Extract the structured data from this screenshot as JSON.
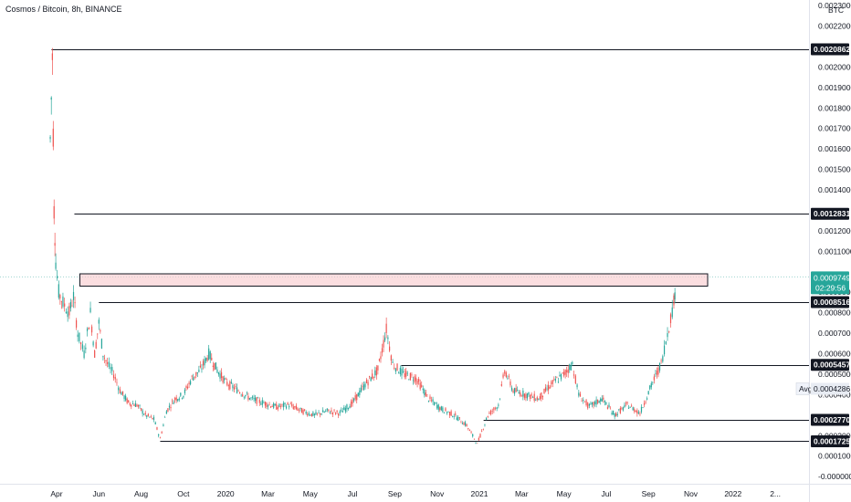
{
  "title": "Cosmos / Bitcoin, 8h, BINANCE",
  "currency": "BTC",
  "colors": {
    "up": "#26a69a",
    "down": "#ef5350",
    "line": "#131722",
    "current": "#26a69a",
    "zone_fill": "#f8c8cc",
    "grid_current": "#9fd4cf"
  },
  "chart_data": {
    "type": "candlestick",
    "title": "Cosmos / Bitcoin, 8h, BINANCE",
    "x_labels": [
      "Apr",
      "Jun",
      "Aug",
      "Oct",
      "2020",
      "Mar",
      "May",
      "Jul",
      "Sep",
      "Nov",
      "2021",
      "Mar",
      "May",
      "Jul",
      "Sep",
      "Nov",
      "2022",
      "2..."
    ],
    "x_range": [
      0,
      18.05
    ],
    "x_ticks_pos": [
      0,
      1,
      2,
      3,
      4,
      5,
      6,
      7,
      8,
      9,
      10,
      11,
      12,
      13,
      14,
      15,
      16,
      17
    ],
    "y_ticks": [
      "0.0022000",
      "0.0020000",
      "0.0019000",
      "0.0018000",
      "0.0017000",
      "0.0016000",
      "0.0015000",
      "0.0014000",
      "0.0012000",
      "0.0011000",
      "0.0009000",
      "0.0008000",
      "0.0007000",
      "0.0006000",
      "0.0005000",
      "0.0004000",
      "0.0002000",
      "0.0001000",
      "-0.0000000"
    ],
    "y_tick_values": [
      0.0022,
      0.002,
      0.0019,
      0.0018,
      0.0017,
      0.0016,
      0.0015,
      0.0014,
      0.0012,
      0.0011,
      0.0009,
      0.0008,
      0.0007,
      0.0006,
      0.0005,
      0.0004,
      0.0002,
      0.0001,
      0.0
    ],
    "y_top_partial": "0.0023000",
    "ylim": [
      -3.5e-05,
      0.002327
    ],
    "price_path": [
      [
        -0.15,
        0.00165
      ],
      [
        -0.1,
        0.00205
      ],
      [
        -0.06,
        0.0013
      ],
      [
        -0.02,
        0.00105
      ],
      [
        0.05,
        0.0009
      ],
      [
        0.15,
        0.00085
      ],
      [
        0.3,
        0.0008
      ],
      [
        0.4,
        0.00088
      ],
      [
        0.5,
        0.0007
      ],
      [
        0.65,
        0.0006
      ],
      [
        0.8,
        0.0008
      ],
      [
        0.9,
        0.0006
      ],
      [
        1.0,
        0.00075
      ],
      [
        1.1,
        0.0006
      ],
      [
        1.2,
        0.00055
      ],
      [
        1.35,
        0.0005
      ],
      [
        1.5,
        0.00042
      ],
      [
        1.7,
        0.00036
      ],
      [
        1.9,
        0.00035
      ],
      [
        2.1,
        0.0003
      ],
      [
        2.3,
        0.00028
      ],
      [
        2.45,
        0.000185
      ],
      [
        2.6,
        0.00032
      ],
      [
        2.8,
        0.00038
      ],
      [
        3.0,
        0.0004
      ],
      [
        3.2,
        0.00048
      ],
      [
        3.4,
        0.00052
      ],
      [
        3.6,
        0.0006
      ],
      [
        3.8,
        0.00052
      ],
      [
        4.0,
        0.00046
      ],
      [
        4.3,
        0.00042
      ],
      [
        4.6,
        0.00038
      ],
      [
        4.9,
        0.00036
      ],
      [
        5.2,
        0.00034
      ],
      [
        5.5,
        0.00035
      ],
      [
        5.8,
        0.00032
      ],
      [
        6.1,
        0.0003
      ],
      [
        6.4,
        0.00032
      ],
      [
        6.7,
        0.00031
      ],
      [
        7.0,
        0.00036
      ],
      [
        7.3,
        0.00045
      ],
      [
        7.6,
        0.00052
      ],
      [
        7.8,
        0.00072
      ],
      [
        7.95,
        0.00055
      ],
      [
        8.2,
        0.0005
      ],
      [
        8.5,
        0.00048
      ],
      [
        8.8,
        0.00038
      ],
      [
        9.1,
        0.00033
      ],
      [
        9.4,
        0.0003
      ],
      [
        9.7,
        0.00025
      ],
      [
        9.95,
        0.00016
      ],
      [
        10.2,
        0.0003
      ],
      [
        10.45,
        0.00035
      ],
      [
        10.6,
        0.00052
      ],
      [
        10.8,
        0.00042
      ],
      [
        11.1,
        0.0004
      ],
      [
        11.4,
        0.00038
      ],
      [
        11.7,
        0.00045
      ],
      [
        12.0,
        0.0005
      ],
      [
        12.2,
        0.00055
      ],
      [
        12.35,
        0.0004
      ],
      [
        12.6,
        0.00034
      ],
      [
        12.9,
        0.00038
      ],
      [
        13.2,
        0.0003
      ],
      [
        13.5,
        0.00035
      ],
      [
        13.8,
        0.00031
      ],
      [
        14.1,
        0.00046
      ],
      [
        14.3,
        0.00055
      ],
      [
        14.45,
        0.0007
      ],
      [
        14.6,
        0.00085
      ],
      [
        14.65,
        0.00096
      ]
    ],
    "levels": [
      {
        "value": 0.0020862,
        "label": "0.0020862",
        "x_start": -0.12
      },
      {
        "value": 0.0012831,
        "label": "0.0012831",
        "x_start": 0.42
      },
      {
        "value": 0.0008516,
        "label": "0.0008516",
        "x_start": 1.0
      },
      {
        "value": 0.0005457,
        "label": "0.0005457",
        "x_start": 8.15
      },
      {
        "value": 0.000277,
        "label": "0.0002770",
        "x_start": 10.1
      },
      {
        "value": 0.0001725,
        "label": "0.0001725",
        "x_start": 2.45
      }
    ],
    "zone": {
      "y_low": 0.00093,
      "y_high": 0.00099,
      "x_start": 0.55,
      "x_end": 15.4
    },
    "current": {
      "value": 0.0009749,
      "label": "0.0009749",
      "countdown": "02:29:56"
    },
    "average": {
      "value": 0.0004286,
      "label": "0.0004286",
      "tag": "Avg"
    }
  }
}
